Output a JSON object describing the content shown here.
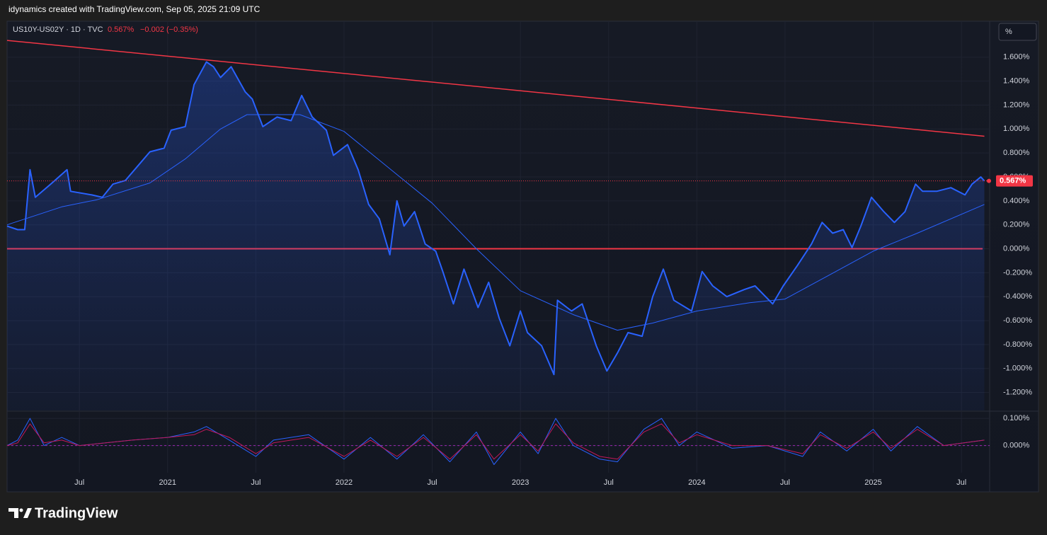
{
  "header": "idynamics created with TradingView.com, Sep 05, 2025 21:09 UTC",
  "unit_button": "%",
  "brand": "TradingView",
  "chart_data": [
    {
      "type": "line",
      "symbol": "US10Y-US02Y · 1D · TVC",
      "last_price": {
        "value": 0.567,
        "label": "0.567%"
      },
      "change": "−0.002 (−0.35%)",
      "xlim": [
        2020.09,
        2025.66
      ],
      "xticks": [
        {
          "value": 2020.5,
          "label": "Jul"
        },
        {
          "value": 2021,
          "label": "2021"
        },
        {
          "value": 2021.5,
          "label": "Jul"
        },
        {
          "value": 2022,
          "label": "2022"
        },
        {
          "value": 2022.5,
          "label": "Jul"
        },
        {
          "value": 2023,
          "label": "2023"
        },
        {
          "value": 2023.5,
          "label": "Jul"
        },
        {
          "value": 2024,
          "label": "2024"
        },
        {
          "value": 2024.5,
          "label": "Jul"
        },
        {
          "value": 2025,
          "label": "2025"
        },
        {
          "value": 2025.5,
          "label": "Jul"
        }
      ],
      "ylim": [
        -1.35,
        1.9
      ],
      "yticks": [
        {
          "value": -1.2,
          "label": "-1.200%"
        },
        {
          "value": -1,
          "label": "-1.000%"
        },
        {
          "value": -0.8,
          "label": "-0.800%"
        },
        {
          "value": -0.6,
          "label": "-0.600%"
        },
        {
          "value": -0.4,
          "label": "-0.400%"
        },
        {
          "value": -0.2,
          "label": "-0.200%"
        },
        {
          "value": 0,
          "label": "0.000%"
        },
        {
          "value": 0.2,
          "label": "0.200%"
        },
        {
          "value": 0.4,
          "label": "0.400%"
        },
        {
          "value": 0.6,
          "label": "0.600%"
        },
        {
          "value": 0.8,
          "label": "0.800%"
        },
        {
          "value": 1,
          "label": "1.000%"
        },
        {
          "value": 1.2,
          "label": "1.200%"
        },
        {
          "value": 1.4,
          "label": "1.400%"
        },
        {
          "value": 1.6,
          "label": "1.600%"
        }
      ],
      "grid": true,
      "hlines": [
        {
          "value": 0,
          "color": "#f23645"
        }
      ],
      "series": [
        {
          "color": "#2962ff",
          "width": 2,
          "area": true,
          "x": [
            2020.09,
            2020.15,
            2020.19,
            2020.22,
            2020.25,
            2020.33,
            2020.43,
            2020.45,
            2020.57,
            2020.63,
            2020.69,
            2020.76,
            2020.83,
            2020.9,
            2020.98,
            2021.02,
            2021.1,
            2021.15,
            2021.22,
            2021.26,
            2021.3,
            2021.36,
            2021.44,
            2021.48,
            2021.54,
            2021.62,
            2021.7,
            2021.76,
            2021.82,
            2021.9,
            2021.94,
            2022.02,
            2022.08,
            2022.14,
            2022.2,
            2022.26,
            2022.3,
            2022.34,
            2022.4,
            2022.46,
            2022.52,
            2022.56,
            2022.62,
            2022.68,
            2022.76,
            2022.82,
            2022.88,
            2022.94,
            2023.0,
            2023.04,
            2023.12,
            2023.19,
            2023.21,
            2023.29,
            2023.35,
            2023.43,
            2023.49,
            2023.55,
            2023.61,
            2023.69,
            2023.75,
            2023.81,
            2023.87,
            2023.97,
            2024.03,
            2024.09,
            2024.17,
            2024.27,
            2024.33,
            2024.43,
            2024.49,
            2024.57,
            2024.65,
            2024.71,
            2024.77,
            2024.83,
            2024.88,
            2024.93,
            2024.99,
            2025.06,
            2025.12,
            2025.18,
            2025.24,
            2025.28,
            2025.36,
            2025.44,
            2025.52,
            2025.56,
            2025.61,
            2025.63
          ],
          "values": [
            0.19,
            0.16,
            0.16,
            0.66,
            0.43,
            0.53,
            0.66,
            0.48,
            0.45,
            0.43,
            0.54,
            0.57,
            0.69,
            0.81,
            0.84,
            0.99,
            1.02,
            1.37,
            1.56,
            1.52,
            1.43,
            1.52,
            1.31,
            1.25,
            1.02,
            1.1,
            1.07,
            1.28,
            1.1,
            0.99,
            0.78,
            0.87,
            0.66,
            0.37,
            0.25,
            -0.05,
            0.4,
            0.19,
            0.31,
            0.04,
            -0.02,
            -0.19,
            -0.46,
            -0.17,
            -0.49,
            -0.28,
            -0.58,
            -0.81,
            -0.52,
            -0.7,
            -0.81,
            -1.05,
            -0.43,
            -0.52,
            -0.46,
            -0.81,
            -1.02,
            -0.87,
            -0.7,
            -0.73,
            -0.4,
            -0.17,
            -0.43,
            -0.52,
            -0.19,
            -0.31,
            -0.4,
            -0.34,
            -0.31,
            -0.46,
            -0.31,
            -0.14,
            0.04,
            0.22,
            0.13,
            0.16,
            0.01,
            0.19,
            0.43,
            0.31,
            0.22,
            0.31,
            0.54,
            0.48,
            0.48,
            0.51,
            0.45,
            0.54,
            0.6,
            0.567
          ]
        },
        {
          "color": "#2962ff",
          "width": 1,
          "x": [
            2020.09,
            2020.4,
            2020.6,
            2020.9,
            2021.1,
            2021.3,
            2021.45,
            2021.75,
            2022.0,
            2022.3,
            2022.5,
            2022.75,
            2023.0,
            2023.3,
            2023.55,
            2023.75,
            2024.0,
            2024.3,
            2024.5,
            2024.75,
            2025.0,
            2025.25,
            2025.63
          ],
          "values": [
            0.2,
            0.35,
            0.41,
            0.55,
            0.75,
            1.0,
            1.12,
            1.12,
            0.98,
            0.62,
            0.38,
            0.0,
            -0.35,
            -0.55,
            -0.68,
            -0.62,
            -0.52,
            -0.45,
            -0.42,
            -0.22,
            -0.02,
            0.13,
            0.37
          ]
        },
        {
          "color": "#f23645",
          "width": 1.5,
          "x": [
            2020.09,
            2025.63
          ],
          "values": [
            1.74,
            0.94
          ]
        }
      ]
    },
    {
      "type": "line",
      "ylim": [
        -0.1,
        0.124
      ],
      "yticks": [
        {
          "value": 0,
          "label": "0.000%"
        },
        {
          "value": 0.1,
          "label": "0.100%"
        }
      ],
      "zero_line": {
        "value": 0,
        "color": "#9c27b0"
      },
      "series": [
        {
          "color": "#2962ff",
          "width": 1,
          "x": [
            2020.09,
            2020.15,
            2020.22,
            2020.3,
            2020.4,
            2020.5,
            2020.65,
            2020.8,
            2021.0,
            2021.15,
            2021.22,
            2021.35,
            2021.5,
            2021.6,
            2021.8,
            2022.0,
            2022.15,
            2022.3,
            2022.45,
            2022.6,
            2022.75,
            2022.85,
            2023.0,
            2023.1,
            2023.2,
            2023.3,
            2023.45,
            2023.55,
            2023.7,
            2023.8,
            2023.9,
            2024.0,
            2024.2,
            2024.4,
            2024.6,
            2024.7,
            2024.85,
            2025.0,
            2025.1,
            2025.25,
            2025.4,
            2025.63
          ],
          "values": [
            0.0,
            0.02,
            0.1,
            0.0,
            0.03,
            0.0,
            0.01,
            0.02,
            0.03,
            0.05,
            0.07,
            0.02,
            -0.04,
            0.02,
            0.04,
            -0.05,
            0.03,
            -0.05,
            0.04,
            -0.06,
            0.05,
            -0.07,
            0.05,
            -0.03,
            0.1,
            0.0,
            -0.05,
            -0.06,
            0.06,
            0.1,
            0.0,
            0.05,
            -0.01,
            0.0,
            -0.04,
            0.05,
            -0.02,
            0.06,
            -0.02,
            0.07,
            0.0,
            0.02
          ]
        },
        {
          "color": "#c2185b",
          "width": 1,
          "x": [
            2020.09,
            2020.15,
            2020.22,
            2020.3,
            2020.4,
            2020.5,
            2020.65,
            2020.8,
            2021.0,
            2021.15,
            2021.22,
            2021.35,
            2021.5,
            2021.6,
            2021.8,
            2022.0,
            2022.15,
            2022.3,
            2022.45,
            2022.6,
            2022.75,
            2022.85,
            2023.0,
            2023.1,
            2023.2,
            2023.3,
            2023.45,
            2023.55,
            2023.7,
            2023.8,
            2023.9,
            2024.0,
            2024.2,
            2024.4,
            2024.6,
            2024.7,
            2024.85,
            2025.0,
            2025.1,
            2025.25,
            2025.4,
            2025.63
          ],
          "values": [
            0.0,
            0.01,
            0.08,
            0.01,
            0.02,
            0.0,
            0.01,
            0.02,
            0.03,
            0.04,
            0.06,
            0.03,
            -0.03,
            0.01,
            0.03,
            -0.04,
            0.02,
            -0.04,
            0.03,
            -0.05,
            0.04,
            -0.05,
            0.04,
            -0.02,
            0.08,
            0.01,
            -0.04,
            -0.05,
            0.05,
            0.08,
            0.01,
            0.04,
            0.0,
            0.0,
            -0.03,
            0.04,
            -0.01,
            0.05,
            -0.01,
            0.06,
            0.0,
            0.02
          ]
        }
      ]
    }
  ]
}
